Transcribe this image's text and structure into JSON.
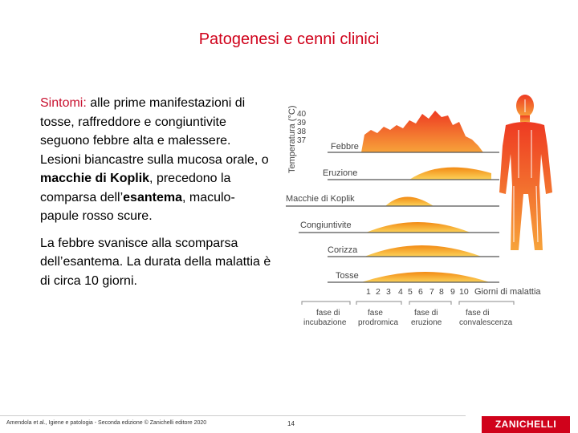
{
  "slide": {
    "title": "Patogenesi e cenni clinici",
    "para1": {
      "label": "Sintomi:",
      "text1": " alle prime manifestazioni di tosse, raffreddore e congiuntivite seguono febbre alta e malessere. Lesioni biancastre sulla mucosa orale, o ",
      "bold1": "macchie di Koplik",
      "text2": ", precedono la comparsa dell’",
      "bold2": "esantema",
      "text3": ", maculo-papule rosso scure."
    },
    "para2": "La febbre svanisce alla scomparsa dell’esantema. La durata della malattia è di circa 10 giorni."
  },
  "diagram": {
    "y_axis_label": "Temperatura (°C)",
    "temp_ticks": [
      "40",
      "39",
      "38",
      "37"
    ],
    "rows": [
      "Febbre",
      "Eruzione",
      "Macchie di Koplik",
      "Congiuntivite",
      "Corizza",
      "Tosse"
    ],
    "days": [
      "1",
      "2",
      "3",
      "4",
      "5",
      "6",
      "7",
      "8",
      "9",
      "10"
    ],
    "x_axis_label": "Giorni di malattia",
    "phases": [
      {
        "line1": "fase di",
        "line2": "incubazione"
      },
      {
        "line1": "fase",
        "line2": "prodromica"
      },
      {
        "line1": "fase di",
        "line2": "eruzione"
      },
      {
        "line1": "fase di",
        "line2": "convalescenza"
      }
    ],
    "colors": {
      "band": "#f29a1a",
      "band_light": "#fbd468",
      "figure": "#e83a28"
    }
  },
  "footer": {
    "citation": "Amendola et al., Igiene e patologia - Seconda edizione © Zanichelli editore 2020",
    "page": "14",
    "logo": "ZANICHELLI"
  }
}
